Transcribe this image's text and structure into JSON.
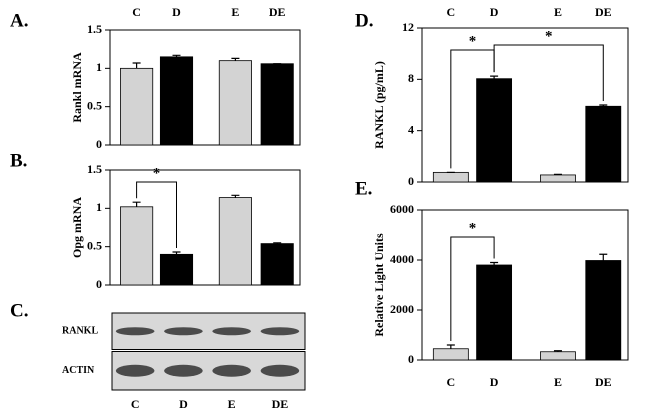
{
  "chart_data": [
    {
      "type": "bar",
      "panel": "A.",
      "ylabel": "Rankl mRNA",
      "categories": [
        "C",
        "D",
        "E",
        "DE"
      ],
      "values": [
        1.0,
        1.15,
        1.1,
        1.06
      ],
      "errors": [
        0.07,
        0.02,
        0.03,
        0
      ],
      "colors": [
        "#d3d3d3",
        "#000000",
        "#d3d3d3",
        "#000000"
      ],
      "ylim": [
        0,
        1.5
      ],
      "yticks": [
        0,
        0.5,
        1,
        1.5
      ]
    },
    {
      "type": "bar",
      "panel": "B.",
      "ylabel": "Opg mRNA",
      "values": [
        1.02,
        0.4,
        1.14,
        0.54
      ],
      "errors": [
        0.06,
        0.03,
        0.03,
        0.01
      ],
      "colors": [
        "#d3d3d3",
        "#000000",
        "#d3d3d3",
        "#000000"
      ],
      "ylim": [
        0,
        1.5
      ],
      "yticks": [
        0,
        0.5,
        1,
        1.5
      ],
      "annotations": [
        "*"
      ]
    },
    {
      "type": "blot",
      "panel": "C.",
      "rows": [
        "RANKL",
        "ACTIN"
      ],
      "categories": [
        "C",
        "D",
        "E",
        "DE"
      ]
    },
    {
      "type": "bar",
      "panel": "D.",
      "ylabel": "RANKL (pg/mL)",
      "categories": [
        "C",
        "D",
        "E",
        "DE"
      ],
      "values": [
        0.75,
        8.05,
        0.55,
        5.9
      ],
      "errors": [
        0,
        0.2,
        0.05,
        0.1
      ],
      "colors": [
        "#d3d3d3",
        "#000000",
        "#d3d3d3",
        "#000000"
      ],
      "ylim": [
        0,
        12
      ],
      "yticks": [
        0,
        4,
        8,
        12
      ],
      "annotations": [
        "*",
        "*"
      ]
    },
    {
      "type": "bar",
      "panel": "E.",
      "ylabel": "Relative Light Units",
      "categories": [
        "C",
        "D",
        "E",
        "DE"
      ],
      "values": [
        450,
        3800,
        330,
        3980
      ],
      "errors": [
        150,
        100,
        40,
        250
      ],
      "colors": [
        "#d3d3d3",
        "#000000",
        "#d3d3d3",
        "#000000"
      ],
      "ylim": [
        0,
        6000
      ],
      "yticks": [
        0,
        2000,
        4000,
        6000
      ],
      "annotations": [
        "*"
      ]
    }
  ]
}
